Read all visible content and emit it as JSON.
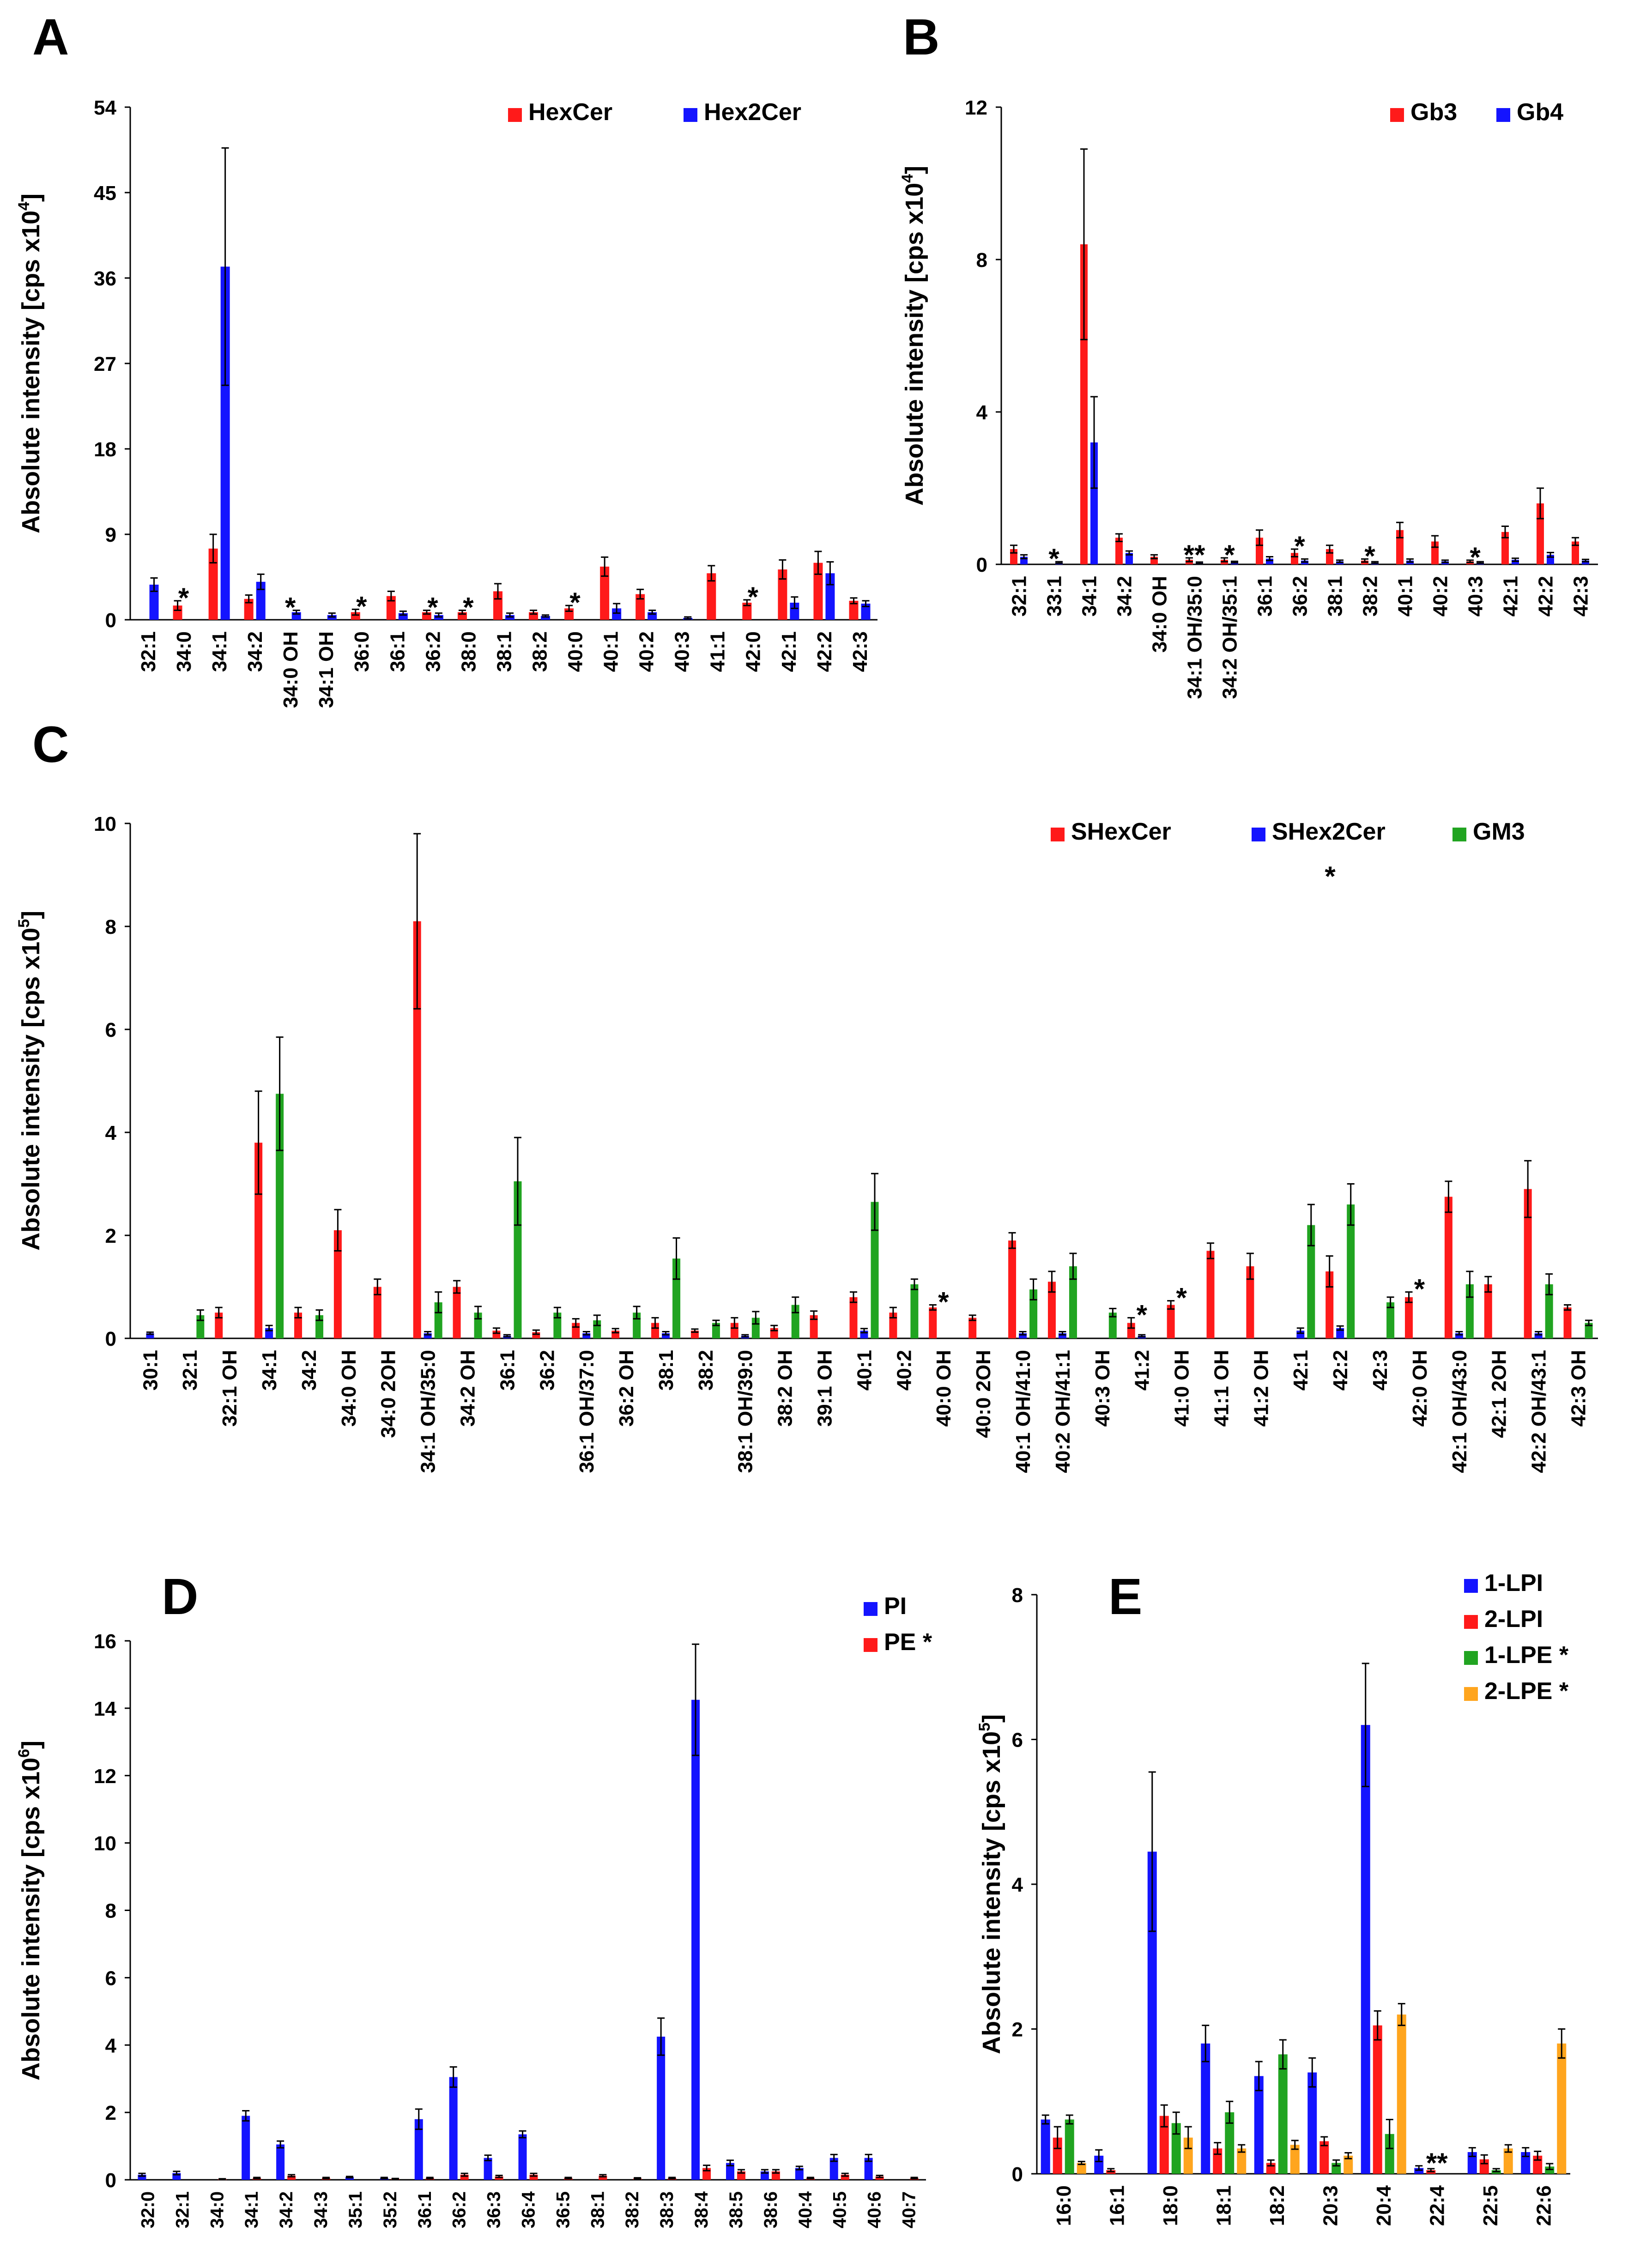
{
  "colors": {
    "red": "#ff1a1a",
    "blue": "#1414ff",
    "green": "#21a421",
    "orange": "#ffa51e",
    "axis": "#000000",
    "error_bar": "#000000"
  },
  "chart_data": [
    {
      "panel": "A",
      "type": "bar",
      "ylabel_text": "Absolute intensity [cps x10",
      "ylabel_exp": "4",
      "ylabel_close": "]",
      "ylim": [
        0,
        54
      ],
      "yticks": [
        0,
        9,
        18,
        27,
        36,
        45,
        54
      ],
      "categories": [
        "32:1",
        "34:0",
        "34:1",
        "34:2",
        "34:0 OH",
        "34:1 OH",
        "36:0",
        "36:1",
        "36:2",
        "38:0",
        "38:1",
        "38:2",
        "40:0",
        "40:1",
        "40:2",
        "40:3",
        "41:1",
        "42:0",
        "42:1",
        "42:2",
        "42:3"
      ],
      "series": [
        {
          "name": "HexCer",
          "color": "red",
          "legend": "HexCer",
          "values": [
            0,
            1.5,
            7.5,
            2.2,
            0,
            0,
            0.8,
            2.5,
            0.8,
            0.8,
            3,
            0.8,
            1.2,
            5.6,
            2.7,
            0,
            4.9,
            1.8,
            5.3,
            6,
            2
          ],
          "errors": [
            0,
            0.5,
            1.5,
            0.4,
            0,
            0,
            0.3,
            0.5,
            0.2,
            0.2,
            0.8,
            0.2,
            0.3,
            1,
            0.5,
            0,
            0.8,
            0.3,
            1,
            1.2,
            0.3
          ]
        },
        {
          "name": "Hex2Cer",
          "color": "blue",
          "legend": "Hex2Cer",
          "values": [
            3.7,
            0,
            37.2,
            4,
            0.8,
            0.5,
            0,
            0.7,
            0.5,
            0,
            0.5,
            0.4,
            0,
            1.2,
            0.8,
            0.2,
            0,
            0,
            1.8,
            4.9,
            1.7
          ],
          "errors": [
            0.7,
            0,
            12.5,
            0.8,
            0.2,
            0.2,
            0,
            0.2,
            0.2,
            0,
            0.2,
            0.1,
            0,
            0.5,
            0.2,
            0.1,
            0,
            0,
            0.6,
            1.2,
            0.3
          ]
        }
      ],
      "annotations": [
        {
          "category": "34:0",
          "text": "*"
        },
        {
          "category": "34:0 OH",
          "text": "*"
        },
        {
          "category": "36:0",
          "text": "*"
        },
        {
          "category": "36:2",
          "text": "*"
        },
        {
          "category": "38:0",
          "text": "*"
        },
        {
          "category": "40:0",
          "text": "*"
        },
        {
          "category": "42:0",
          "text": "*"
        }
      ]
    },
    {
      "panel": "B",
      "type": "bar",
      "ylabel_text": "Absolute intensity [cps x10",
      "ylabel_exp": "4",
      "ylabel_close": "]",
      "ylim": [
        0,
        12
      ],
      "yticks": [
        0,
        4,
        8,
        12
      ],
      "categories": [
        "32:1",
        "33:1",
        "34:1",
        "34:2",
        "34:0 OH",
        "34:1 OH/35:0",
        "34:2 OH/35:1",
        "36:1",
        "36:2",
        "38:1",
        "38:2",
        "40:1",
        "40:2",
        "40:3",
        "42:1",
        "42:2",
        "42:3"
      ],
      "series": [
        {
          "name": "Gb3",
          "color": "red",
          "legend": "Gb3",
          "values": [
            0.4,
            0,
            8.4,
            0.7,
            0.2,
            0.12,
            0.12,
            0.7,
            0.3,
            0.4,
            0.1,
            0.9,
            0.6,
            0.08,
            0.85,
            1.6,
            0.6
          ],
          "errors": [
            0.1,
            0,
            2.5,
            0.1,
            0.05,
            0.05,
            0.05,
            0.2,
            0.1,
            0.1,
            0.04,
            0.2,
            0.15,
            0.03,
            0.15,
            0.4,
            0.1
          ]
        },
        {
          "name": "Gb4",
          "color": "blue",
          "legend": "Gb4",
          "values": [
            0.2,
            0.05,
            3.2,
            0.3,
            0,
            0.04,
            0.06,
            0.15,
            0.1,
            0.08,
            0.05,
            0.1,
            0.08,
            0.05,
            0.12,
            0.25,
            0.1
          ],
          "errors": [
            0.05,
            0.02,
            1.2,
            0.05,
            0,
            0.02,
            0.02,
            0.05,
            0.04,
            0.03,
            0.02,
            0.04,
            0.03,
            0.02,
            0.04,
            0.06,
            0.03
          ]
        }
      ],
      "annotations": [
        {
          "category": "33:1",
          "text": "*"
        },
        {
          "category": "34:1 OH/35:0",
          "text": "**"
        },
        {
          "category": "34:2 OH/35:1",
          "text": "*"
        },
        {
          "category": "36:2",
          "text": "*"
        },
        {
          "category": "38:2",
          "text": "*"
        },
        {
          "category": "40:3",
          "text": "*"
        }
      ]
    },
    {
      "panel": "C",
      "type": "bar",
      "ylabel_text": "Absolute intensity [cps x10",
      "ylabel_exp": "5",
      "ylabel_close": "]",
      "ylim": [
        0,
        10
      ],
      "yticks": [
        0,
        2,
        4,
        6,
        8,
        10
      ],
      "categories": [
        "30:1",
        "32:1",
        "32:1 OH",
        "34:1",
        "34:2",
        "34:0 OH",
        "34:0 2OH",
        "34:1 OH/35:0",
        "34:2 OH",
        "36:1",
        "36:2",
        "36:1 OH/37:0",
        "36:2 OH",
        "38:1",
        "38:2",
        "38:1 OH/39:0",
        "38:2 OH",
        "39:1 OH",
        "40:1",
        "40:2",
        "40:0 OH",
        "40:0 2OH",
        "40:1 OH/41:0",
        "40:2 OH/41:1",
        "40:3 OH",
        "41:2",
        "41:0 OH",
        "41:1 OH",
        "41:2 OH",
        "42:1",
        "42:2",
        "42:3",
        "42:0 OH",
        "42:1 OH/43:0",
        "42:1 2OH",
        "42:2 OH/43:1",
        "42:3 OH"
      ],
      "series": [
        {
          "name": "SHexCer",
          "color": "red",
          "legend": "SHexCer",
          "values": [
            0,
            0,
            0.5,
            3.8,
            0.5,
            2.1,
            1,
            8.1,
            1,
            0.15,
            0.12,
            0.3,
            0.15,
            0.3,
            0.15,
            0.3,
            0.2,
            0.45,
            0.8,
            0.5,
            0.6,
            0.4,
            1.9,
            1.1,
            0,
            0.3,
            0.65,
            1.7,
            1.4,
            0,
            1.3,
            0,
            0.8,
            2.75,
            1.05,
            2.9,
            0.6
          ],
          "errors": [
            0,
            0,
            0.1,
            1,
            0.1,
            0.4,
            0.15,
            1.7,
            0.12,
            0.05,
            0.04,
            0.08,
            0.04,
            0.1,
            0.03,
            0.1,
            0.05,
            0.08,
            0.1,
            0.1,
            0.05,
            0.05,
            0.15,
            0.2,
            0,
            0.1,
            0.08,
            0.15,
            0.25,
            0,
            0.3,
            0,
            0.1,
            0.3,
            0.15,
            0.55,
            0.05
          ]
        },
        {
          "name": "SHex2Cer",
          "color": "blue",
          "legend": "SHex2Cer",
          "values": [
            0.1,
            0,
            0,
            0.2,
            0,
            0,
            0,
            0.1,
            0,
            0.05,
            0,
            0.1,
            0,
            0.1,
            0,
            0.05,
            0,
            0,
            0.15,
            0,
            0,
            0,
            0.1,
            0.1,
            0,
            0.05,
            0,
            0,
            0,
            0.15,
            0.2,
            0,
            0,
            0.1,
            0,
            0.1,
            0
          ],
          "errors": [
            0.02,
            0,
            0,
            0.05,
            0,
            0,
            0,
            0.03,
            0,
            0.02,
            0,
            0.03,
            0,
            0.03,
            0,
            0.02,
            0,
            0,
            0.04,
            0,
            0,
            0,
            0.03,
            0.03,
            0,
            0.02,
            0,
            0,
            0,
            0.05,
            0.04,
            0,
            0,
            0.03,
            0,
            0.03,
            0
          ]
        },
        {
          "name": "GM3",
          "color": "green",
          "legend": "GM3",
          "values": [
            0,
            0.45,
            0,
            4.75,
            0.45,
            0,
            0,
            0.7,
            0.5,
            3.05,
            0.5,
            0.35,
            0.5,
            1.55,
            0.3,
            0.4,
            0.65,
            0,
            2.65,
            1.05,
            0,
            0,
            0.95,
            1.4,
            0.5,
            0,
            0,
            0,
            0,
            2.2,
            2.6,
            0.7,
            0,
            1.05,
            0,
            1.05,
            0.3
          ],
          "errors": [
            0,
            0.1,
            0,
            1.1,
            0.1,
            0,
            0,
            0.2,
            0.12,
            0.85,
            0.1,
            0.1,
            0.12,
            0.4,
            0.05,
            0.12,
            0.15,
            0,
            0.55,
            0.1,
            0,
            0,
            0.2,
            0.25,
            0.08,
            0,
            0,
            0,
            0,
            0.4,
            0.4,
            0.1,
            0,
            0.25,
            0,
            0.2,
            0.05
          ]
        }
      ],
      "annotations": [
        {
          "category": "40:0 OH",
          "text": "*"
        },
        {
          "category": "41:2",
          "text": "*"
        },
        {
          "category": "41:0 OH",
          "text": "*"
        },
        {
          "category": "42:0 OH",
          "text": "*"
        }
      ],
      "legend_star": "*"
    },
    {
      "panel": "D",
      "type": "bar",
      "ylabel_text": "Absolute intensity [cps x10",
      "ylabel_exp": "6",
      "ylabel_close": "]",
      "ylim": [
        0,
        16
      ],
      "yticks": [
        0,
        2,
        4,
        6,
        8,
        10,
        12,
        14,
        16
      ],
      "categories": [
        "32:0",
        "32:1",
        "34:0",
        "34:1",
        "34:2",
        "34:3",
        "35:1",
        "35:2",
        "36:1",
        "36:2",
        "36:3",
        "36:4",
        "36:5",
        "38:1",
        "38:2",
        "38:3",
        "38:4",
        "38:5",
        "38:6",
        "40:4",
        "40:5",
        "40:6",
        "40:7"
      ],
      "series": [
        {
          "name": "PI",
          "color": "blue",
          "legend": "PI",
          "values": [
            0.15,
            0.2,
            0,
            1.9,
            1.05,
            0,
            0.08,
            0.05,
            1.8,
            3.05,
            0.65,
            1.35,
            0,
            0,
            0,
            4.25,
            14.25,
            0.5,
            0.25,
            0.35,
            0.65,
            0.65,
            0
          ],
          "errors": [
            0.04,
            0.05,
            0,
            0.15,
            0.1,
            0,
            0.02,
            0.02,
            0.3,
            0.3,
            0.08,
            0.1,
            0,
            0,
            0,
            0.55,
            1.65,
            0.08,
            0.05,
            0.05,
            0.1,
            0.1,
            0
          ]
        },
        {
          "name": "PE",
          "color": "red",
          "legend": "PE *",
          "values": [
            0,
            0,
            0.02,
            0.05,
            0.12,
            0.05,
            0,
            0.03,
            0.05,
            0.15,
            0.1,
            0.15,
            0.05,
            0.12,
            0.04,
            0.05,
            0.35,
            0.25,
            0.25,
            0.05,
            0.15,
            0.1,
            0.05
          ],
          "errors": [
            0,
            0,
            0.01,
            0.02,
            0.03,
            0.02,
            0,
            0.01,
            0.02,
            0.04,
            0.03,
            0.04,
            0.02,
            0.03,
            0.02,
            0.02,
            0.08,
            0.05,
            0.05,
            0.02,
            0.04,
            0.03,
            0.02
          ]
        }
      ],
      "annotations": []
    },
    {
      "panel": "E",
      "type": "bar",
      "ylabel_text": "Absolute intensity [cps x10",
      "ylabel_exp": "5",
      "ylabel_close": "]",
      "ylim": [
        0,
        8
      ],
      "yticks": [
        0,
        2,
        4,
        6,
        8
      ],
      "categories": [
        "16:0",
        "16:1",
        "18:0",
        "18:1",
        "18:2",
        "20:3",
        "20:4",
        "22:4",
        "22:5",
        "22:6"
      ],
      "series": [
        {
          "name": "1-LPI",
          "color": "blue",
          "legend": "1-LPI",
          "values": [
            0.75,
            0.25,
            4.45,
            1.8,
            1.35,
            1.4,
            6.2,
            0.08,
            0.3,
            0.3
          ],
          "errors": [
            0.06,
            0.08,
            1.1,
            0.25,
            0.2,
            0.2,
            0.85,
            0.03,
            0.06,
            0.06
          ]
        },
        {
          "name": "2-LPI",
          "color": "red",
          "legend": "2-LPI",
          "values": [
            0.5,
            0.05,
            0.8,
            0.35,
            0.15,
            0.45,
            2.05,
            0.05,
            0.2,
            0.25
          ],
          "errors": [
            0.15,
            0.02,
            0.15,
            0.08,
            0.04,
            0.06,
            0.2,
            0.02,
            0.06,
            0.06
          ]
        },
        {
          "name": "1-LPE",
          "color": "green",
          "legend": "1-LPE *",
          "values": [
            0.75,
            0,
            0.7,
            0.85,
            1.65,
            0.15,
            0.55,
            0,
            0.05,
            0.1
          ],
          "errors": [
            0.06,
            0,
            0.15,
            0.15,
            0.2,
            0.04,
            0.2,
            0,
            0.02,
            0.04
          ]
        },
        {
          "name": "2-LPE",
          "color": "orange",
          "legend": "2-LPE *",
          "values": [
            0.15,
            0,
            0.5,
            0.35,
            0.4,
            0.25,
            2.2,
            0,
            0.35,
            1.8
          ],
          "errors": [
            0.02,
            0,
            0.15,
            0.05,
            0.06,
            0.04,
            0.15,
            0,
            0.05,
            0.2
          ]
        }
      ],
      "annotations": [
        {
          "category": "22:4",
          "text": "**"
        }
      ]
    }
  ]
}
